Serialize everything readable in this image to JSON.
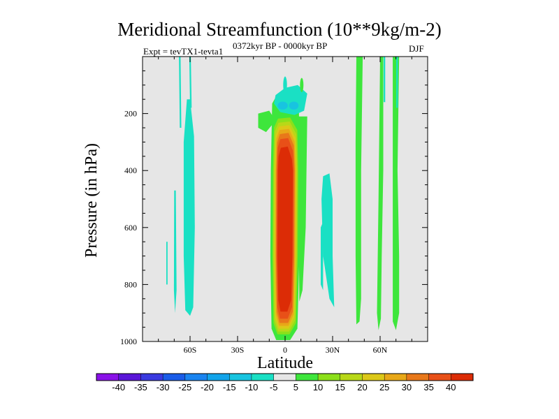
{
  "chart_data": {
    "type": "heatmap",
    "title": "Meridional Streamfunction (10**9kg/m-2)",
    "left_subtitle": "Expt = tevTX1-tevta1",
    "center_subtitle": "0372kyr BP - 0000kyr BP",
    "right_subtitle": "DJF",
    "xlabel": "Latitude",
    "ylabel": "Pressure (in hPa)",
    "xlim": [
      -90,
      90
    ],
    "ylim": [
      1000,
      0
    ],
    "x_ticks": [
      {
        "value": -60,
        "label": "60S"
      },
      {
        "value": -30,
        "label": "30S"
      },
      {
        "value": 0,
        "label": "0"
      },
      {
        "value": 30,
        "label": "30N"
      },
      {
        "value": 60,
        "label": "60N"
      }
    ],
    "y_ticks": [
      {
        "value": 200,
        "label": "200"
      },
      {
        "value": 400,
        "label": "400"
      },
      {
        "value": 600,
        "label": "600"
      },
      {
        "value": 800,
        "label": "800"
      },
      {
        "value": 1000,
        "label": "1000"
      }
    ],
    "colorbar": {
      "levels": [
        "-40",
        "-35",
        "-30",
        "-25",
        "-20",
        "-15",
        "-10",
        "-5",
        "5",
        "10",
        "15",
        "20",
        "25",
        "30",
        "35",
        "40"
      ],
      "colors": [
        "#8a12e8",
        "#5a16d8",
        "#3a3ae0",
        "#1a5ce8",
        "#1a84f0",
        "#12a4ea",
        "#18c4e0",
        "#1ae0c4",
        "#e6e6e6",
        "#3ee63c",
        "#8ce01a",
        "#b8d818",
        "#dcc818",
        "#e8a818",
        "#e8781a",
        "#e85018",
        "#dc2c06"
      ]
    },
    "features": [
      {
        "name": "tropical positive cell",
        "lat_range": [
          -9,
          8
        ],
        "p_range": [
          150,
          980
        ],
        "peak": 40
      },
      {
        "name": "upper tropical negative cell",
        "lat_range": [
          -5,
          12
        ],
        "p_range": [
          100,
          200
        ],
        "peak": -10
      },
      {
        "name": "southern midlatitude negative band",
        "lat_range": [
          -64,
          -57
        ],
        "p_range": [
          0,
          910
        ],
        "peak": -5
      },
      {
        "name": "northern subtropical negative cell",
        "lat_range": [
          20,
          33
        ],
        "p_range": [
          410,
          880
        ],
        "peak": -5
      },
      {
        "name": "northern high-latitude positive bands",
        "lat_range": [
          44,
          72
        ],
        "p_range": [
          0,
          960
        ],
        "peak": 5
      }
    ]
  }
}
